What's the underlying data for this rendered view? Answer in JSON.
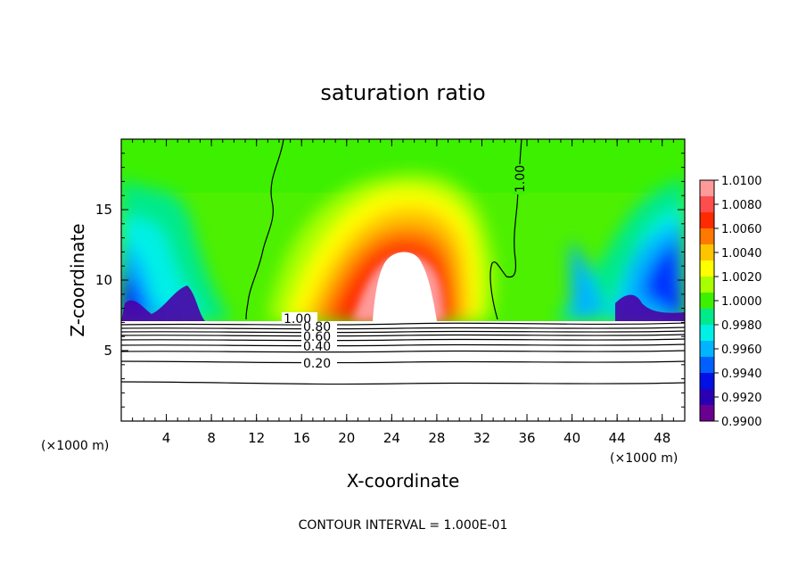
{
  "chart_data": {
    "type": "heatmap",
    "title": "saturation ratio",
    "xlabel": "X-coordinate",
    "ylabel": "Z-coordinate",
    "x_unit_left": "(×1000 m)",
    "x_unit_right": "(×1000 m)",
    "footer": "CONTOUR INTERVAL = 1.000E-01",
    "xlim": [
      0,
      50
    ],
    "ylim": [
      0,
      20
    ],
    "x_ticks": [
      "4",
      "8",
      "12",
      "16",
      "20",
      "24",
      "28",
      "32",
      "36",
      "40",
      "44",
      "48"
    ],
    "y_ticks": [
      "5",
      "10",
      "15"
    ],
    "colorbar": {
      "labels": [
        "1.0100",
        "1.0080",
        "1.0060",
        "1.0040",
        "1.0020",
        "1.0000",
        "0.9980",
        "0.9960",
        "0.9940",
        "0.9920",
        "0.9900"
      ],
      "colors": [
        "#ff9a9a",
        "#ff4d4d",
        "#ff2a00",
        "#ff7800",
        "#ffc400",
        "#ffff00",
        "#a8ff00",
        "#3cf000",
        "#00e98a",
        "#00f0e6",
        "#00b4ff",
        "#0060ff",
        "#0010e6",
        "#2a00b4",
        "#6a0090"
      ],
      "range": [
        0.99,
        1.01
      ]
    },
    "contour_labels": [
      "1.00",
      "0.80",
      "0.60",
      "0.40",
      "0.20",
      "1.00"
    ],
    "colors": {
      "background": "#ffffff",
      "field_base": "#4cf000",
      "line": "#000000"
    }
  }
}
